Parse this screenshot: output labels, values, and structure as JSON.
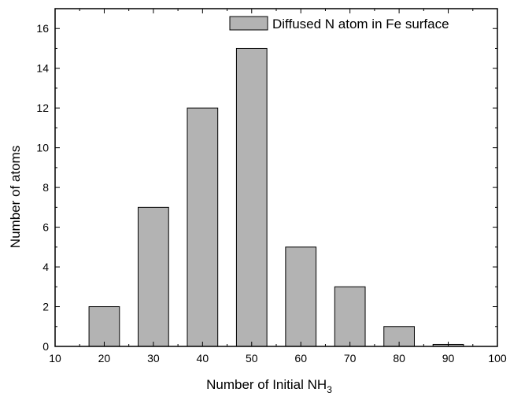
{
  "chart_data": {
    "type": "bar",
    "title": "",
    "x": [
      20,
      30,
      40,
      50,
      60,
      70,
      80,
      90
    ],
    "values": [
      2,
      7,
      12,
      15,
      5,
      3,
      1,
      0.1
    ],
    "xlim": [
      10,
      100
    ],
    "ylim": [
      0,
      17
    ],
    "xticks": [
      10,
      20,
      30,
      40,
      50,
      60,
      70,
      80,
      90,
      100
    ],
    "yticks": [
      0,
      2,
      4,
      6,
      8,
      10,
      12,
      14,
      16
    ],
    "xlabel": "Number of Initial NH",
    "xlabel_subscript": "3",
    "ylabel": "Number of atoms",
    "legend": {
      "label": "Diffused N atom in Fe surface",
      "placement": "top-right"
    },
    "grid": false,
    "bar_color": "#b3b3b3",
    "edge_color": "#000000"
  }
}
